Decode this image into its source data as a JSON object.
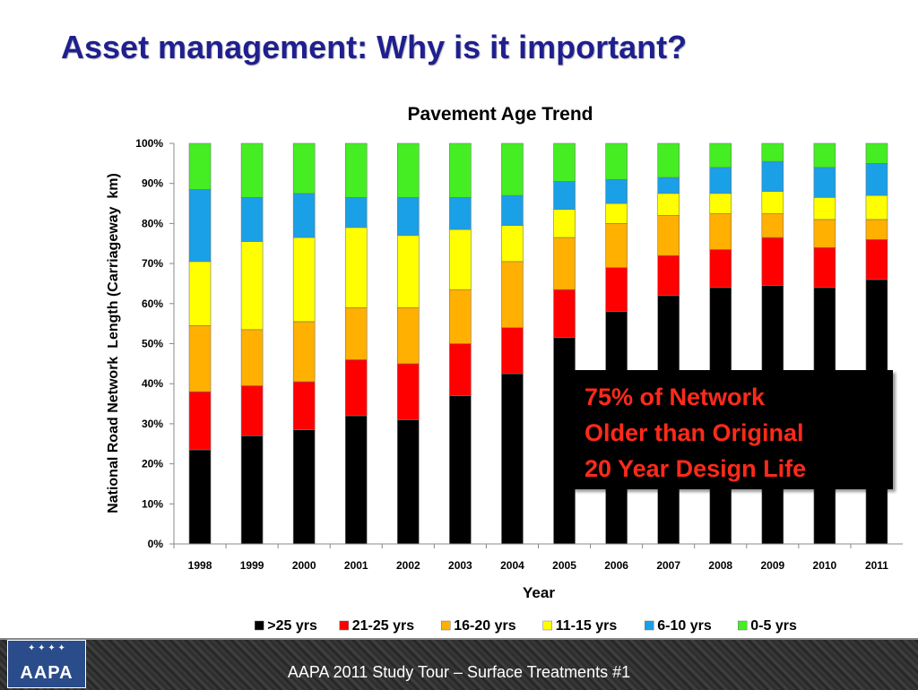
{
  "slide": {
    "title": "Asset management: Why is it important?",
    "footer": "AAPA 2011 Study Tour – Surface Treatments #1",
    "logo_text": "AAPA"
  },
  "callout": {
    "lines": [
      "75% of Network",
      "Older than Original",
      "20 Year Design Life"
    ],
    "text_color": "#ff2a1a",
    "background": "#000000"
  },
  "chart_data": {
    "type": "bar",
    "stacked": true,
    "percent_stacked": true,
    "title": "Pavement Age Trend",
    "xlabel": "Year",
    "ylabel": "National Road Network  Length (Carriageway  km)",
    "ylim": [
      0,
      100
    ],
    "yticks": [
      "0%",
      "10%",
      "20%",
      "30%",
      "40%",
      "50%",
      "60%",
      "70%",
      "80%",
      "90%",
      "100%"
    ],
    "grid": false,
    "legend_position": "bottom",
    "categories": [
      "1998",
      "1999",
      "2000",
      "2001",
      "2002",
      "2003",
      "2004",
      "2005",
      "2006",
      "2007",
      "2008",
      "2009",
      "2010",
      "2011"
    ],
    "series": [
      {
        "name": ">25 yrs",
        "color": "#000000",
        "values": [
          23.5,
          27,
          28.5,
          32,
          31,
          37,
          42.5,
          51.5,
          58,
          62,
          64,
          64.5,
          64,
          66
        ]
      },
      {
        "name": "21-25 yrs",
        "color": "#ff0000",
        "values": [
          14.5,
          12.5,
          12,
          14,
          14,
          13,
          11.5,
          12,
          11,
          10,
          9.5,
          12,
          10,
          10
        ]
      },
      {
        "name": "16-20 yrs",
        "color": "#ffb000",
        "values": [
          16.5,
          14,
          15,
          13,
          14,
          13.5,
          16.5,
          13,
          11,
          10,
          9,
          6,
          7,
          5
        ]
      },
      {
        "name": "11-15 yrs",
        "color": "#ffff00",
        "values": [
          16,
          22,
          21,
          20,
          18,
          15,
          9,
          7,
          5,
          5.5,
          5,
          5.5,
          5.5,
          6
        ]
      },
      {
        "name": "6-10 yrs",
        "color": "#1aa0e6",
        "values": [
          18,
          11,
          11,
          7.5,
          9.5,
          8,
          7.5,
          7,
          6,
          4,
          6.5,
          7.5,
          7.5,
          8
        ]
      },
      {
        "name": "0-5 yrs",
        "color": "#44ee22",
        "values": [
          11.5,
          13.5,
          12.5,
          13.5,
          13.5,
          13.5,
          13,
          9.5,
          9,
          8.5,
          6,
          4.5,
          6,
          5
        ]
      }
    ]
  }
}
